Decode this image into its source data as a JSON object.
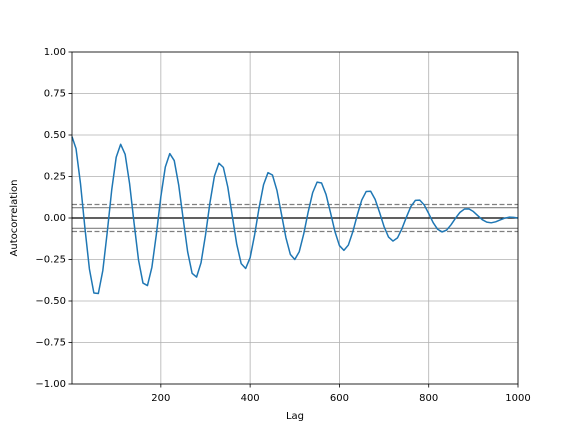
{
  "chart_data": {
    "type": "line",
    "xlabel": "Lag",
    "ylabel": "Autocorrelation",
    "x": [
      1,
      10,
      20,
      30,
      40,
      50,
      60,
      70,
      80,
      90,
      100,
      110,
      120,
      130,
      140,
      150,
      160,
      170,
      180,
      190,
      200,
      210,
      220,
      230,
      240,
      250,
      260,
      270,
      280,
      290,
      300,
      310,
      320,
      330,
      340,
      350,
      360,
      370,
      380,
      390,
      400,
      410,
      420,
      430,
      440,
      450,
      460,
      470,
      480,
      490,
      500,
      510,
      520,
      530,
      540,
      550,
      560,
      570,
      580,
      590,
      600,
      610,
      620,
      630,
      640,
      650,
      660,
      670,
      680,
      690,
      700,
      710,
      720,
      730,
      740,
      750,
      760,
      770,
      780,
      790,
      800,
      810,
      820,
      830,
      840,
      850,
      860,
      870,
      880,
      890,
      900,
      910,
      920,
      930,
      940,
      950,
      960,
      970,
      980,
      990,
      1000
    ],
    "values": [
      0.49,
      0.418,
      0.208,
      -0.062,
      -0.307,
      -0.452,
      -0.455,
      -0.317,
      -0.084,
      0.17,
      0.366,
      0.444,
      0.384,
      0.207,
      -0.03,
      -0.253,
      -0.392,
      -0.407,
      -0.296,
      -0.097,
      0.128,
      0.307,
      0.388,
      0.346,
      0.199,
      -0.005,
      -0.203,
      -0.333,
      -0.356,
      -0.27,
      -0.103,
      0.092,
      0.252,
      0.33,
      0.305,
      0.186,
      0.013,
      -0.158,
      -0.275,
      -0.304,
      -0.239,
      -0.102,
      0.061,
      0.2,
      0.273,
      0.259,
      0.167,
      0.026,
      -0.117,
      -0.219,
      -0.25,
      -0.203,
      -0.096,
      0.036,
      0.152,
      0.216,
      0.211,
      0.142,
      0.033,
      -0.082,
      -0.166,
      -0.195,
      -0.163,
      -0.083,
      0.018,
      0.108,
      0.16,
      0.161,
      0.112,
      0.033,
      -0.052,
      -0.115,
      -0.139,
      -0.12,
      -0.065,
      0.005,
      0.069,
      0.106,
      0.108,
      0.078,
      0.027,
      -0.028,
      -0.068,
      -0.084,
      -0.073,
      -0.041,
      -0.001,
      0.034,
      0.054,
      0.055,
      0.039,
      0.014,
      -0.01,
      -0.025,
      -0.029,
      -0.023,
      -0.012,
      -0.001,
      0.005,
      0.004,
      0.0
    ],
    "color": "#1f77b4",
    "hlines": [
      {
        "value": 0.0815,
        "color": "#808080",
        "dashed": true
      },
      {
        "value": 0.062,
        "color": "#808080",
        "dashed": false
      },
      {
        "value": 0,
        "color": "#000000",
        "dashed": false
      },
      {
        "value": -0.062,
        "color": "#808080",
        "dashed": false
      },
      {
        "value": -0.0815,
        "color": "#808080",
        "dashed": true
      }
    ],
    "xlim": [
      1,
      1000
    ],
    "xticks": [
      200,
      400,
      600,
      800,
      1000
    ],
    "ylim": [
      -1,
      1
    ],
    "yticks": [
      {
        "value": -1,
        "label": "−1.00"
      },
      {
        "value": -0.75,
        "label": "−0.75"
      },
      {
        "value": -0.5,
        "label": "−0.50"
      },
      {
        "value": -0.25,
        "label": "−0.25"
      },
      {
        "value": 0,
        "label": "0.00"
      },
      {
        "value": 0.25,
        "label": "0.25"
      },
      {
        "value": 0.5,
        "label": "0.50"
      },
      {
        "value": 0.75,
        "label": "0.75"
      },
      {
        "value": 1,
        "label": "1.00"
      }
    ],
    "grid": true
  }
}
